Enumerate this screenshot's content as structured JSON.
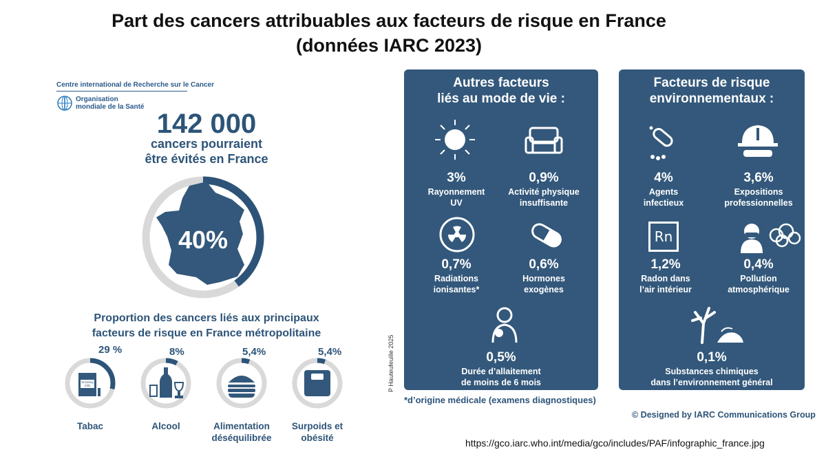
{
  "title_line1": "Part des cancers attribuables aux facteurs de risque en France",
  "title_line2": "(données IARC 2023)",
  "org": {
    "iarc": "Centre international de Recherche sur le Cancer",
    "who_line1": "Organisation",
    "who_line2": "mondiale de la Santé"
  },
  "main": {
    "number": "142 000",
    "sub_line1": "cancers pourraient",
    "sub_line2": "être évités en France",
    "percent": "40%",
    "percent_value": 40
  },
  "proportion_title_line1": "Proportion des cancers liés aux principaux",
  "proportion_title_line2": "facteurs de risque en France métropolitaine",
  "risk_factors": [
    {
      "pct": "29 %",
      "value": 29,
      "label1": "Tabac",
      "label2": "",
      "pack_text1": "Smoking",
      "pack_text2": "Kills"
    },
    {
      "pct": "8%",
      "value": 8,
      "label1": "Alcool",
      "label2": ""
    },
    {
      "pct": "5,4%",
      "value": 5.4,
      "label1": "Alimentation",
      "label2": "déséquilibrée"
    },
    {
      "pct": "5,4%",
      "value": 5.4,
      "label1": "Surpoids et",
      "label2": "obésité"
    }
  ],
  "lifestyle": {
    "title_line1": "Autres facteurs",
    "title_line2": "liés au mode de vie :",
    "items": [
      {
        "pct": "3%",
        "label1": "Rayonnement",
        "label2": "UV"
      },
      {
        "pct": "0,9%",
        "label1": "Activité physique",
        "label2": "insuffisante"
      },
      {
        "pct": "0,7%",
        "label1": "Radiations",
        "label2": "ionisantes*"
      },
      {
        "pct": "0,6%",
        "label1": "Hormones",
        "label2": "exogènes"
      },
      {
        "pct": "0,5%",
        "label1": "Durée d’allaitement",
        "label2": "de moins de 6 mois"
      }
    ]
  },
  "environment": {
    "title_line1": "Facteurs de risque",
    "title_line2": "environnementaux :",
    "items": [
      {
        "pct": "4%",
        "label1": "Agents",
        "label2": "infectieux"
      },
      {
        "pct": "3,6%",
        "label1": "Expositions",
        "label2": "professionnelles"
      },
      {
        "pct": "1,2%",
        "label1": "Radon dans",
        "label2": "l’air intérieur"
      },
      {
        "pct": "0,4%",
        "label1": "Pollution",
        "label2": "atmosphérique"
      },
      {
        "pct": "0,1%",
        "label1": "Substances chimiques",
        "label2": "dans l’environnement général"
      }
    ],
    "radon_symbol": "Rn"
  },
  "vertical_credit": "P Hauteufeuille 2025",
  "footnote": "*d’origine médicale (examens diagnostiques)",
  "designed_by": "© Designed by IARC Communications Group",
  "url": "https://gco.iarc.who.int/media/gco/includes/PAF/infographic_france.jpg",
  "colors": {
    "panel": "#33587b",
    "accent": "#2d5478",
    "ring_bg": "#d9d9d9"
  }
}
